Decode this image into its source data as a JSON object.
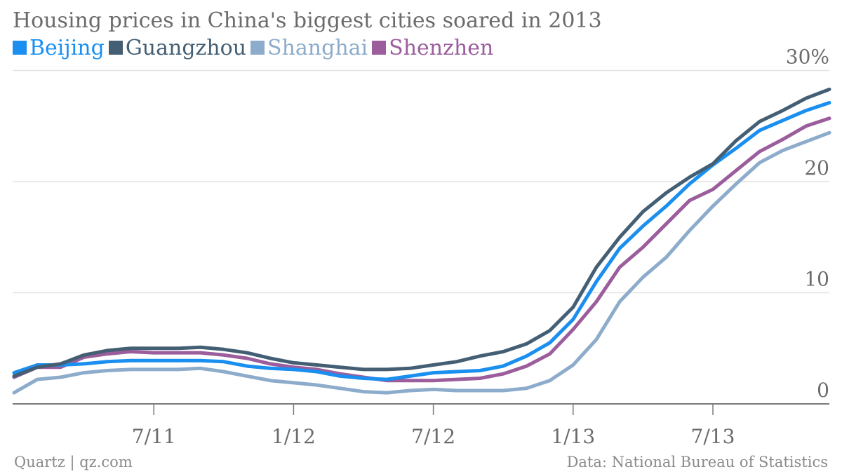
{
  "title": "Housing prices in China's biggest cities soared in 2013",
  "footer": {
    "credit": "Quartz | qz.com",
    "source": "Data: National Bureau of Statistics"
  },
  "chart_data": {
    "type": "line",
    "title": "Housing prices in China's biggest cities soared in 2013",
    "xlabel": "",
    "ylabel": "",
    "x": [
      "1/11",
      "2/11",
      "3/11",
      "4/11",
      "5/11",
      "6/11",
      "7/11",
      "8/11",
      "9/11",
      "10/11",
      "11/11",
      "12/11",
      "1/12",
      "2/12",
      "3/12",
      "4/12",
      "5/12",
      "6/12",
      "7/12",
      "8/12",
      "9/12",
      "10/12",
      "11/12",
      "12/12",
      "1/13",
      "2/13",
      "3/13",
      "4/13",
      "5/13",
      "6/13",
      "7/13",
      "8/13",
      "9/13",
      "10/13",
      "11/13",
      "12/13"
    ],
    "x_ticks": [
      "7/11",
      "1/12",
      "7/12",
      "1/13",
      "7/13"
    ],
    "y_ticks": [
      0,
      10,
      20,
      30
    ],
    "y_tick_labels": [
      "0",
      "10",
      "20",
      "30%"
    ],
    "ylim": [
      -1,
      30.5
    ],
    "grid": true,
    "legend_placement": "top-left",
    "series": [
      {
        "name": "Beijing",
        "color": "#1a8ff0",
        "values": [
          2.8,
          3.5,
          3.5,
          3.6,
          3.8,
          3.9,
          3.9,
          3.9,
          3.9,
          3.8,
          3.4,
          3.2,
          3.1,
          2.9,
          2.5,
          2.3,
          2.2,
          2.5,
          2.8,
          2.9,
          3.0,
          3.4,
          4.3,
          5.5,
          7.6,
          11.0,
          14.0,
          16.0,
          17.8,
          19.8,
          21.5,
          23.0,
          24.6,
          25.5,
          26.4,
          27.1
        ]
      },
      {
        "name": "Guangzhou",
        "color": "#445f74",
        "values": [
          2.5,
          3.3,
          3.6,
          4.4,
          4.8,
          5.0,
          5.0,
          5.0,
          5.1,
          4.9,
          4.6,
          4.1,
          3.7,
          3.5,
          3.3,
          3.1,
          3.1,
          3.2,
          3.5,
          3.8,
          4.3,
          4.7,
          5.4,
          6.6,
          8.7,
          12.3,
          15.0,
          17.3,
          19.0,
          20.4,
          21.6,
          23.7,
          25.4,
          26.4,
          27.5,
          28.3
        ]
      },
      {
        "name": "Shanghai",
        "color": "#8daccb",
        "values": [
          1.0,
          2.2,
          2.4,
          2.8,
          3.0,
          3.1,
          3.1,
          3.1,
          3.2,
          2.9,
          2.5,
          2.1,
          1.9,
          1.7,
          1.4,
          1.1,
          1.0,
          1.2,
          1.3,
          1.2,
          1.2,
          1.2,
          1.4,
          2.1,
          3.5,
          5.8,
          9.2,
          11.4,
          13.2,
          15.6,
          17.8,
          19.8,
          21.7,
          22.8,
          23.6,
          24.4
        ]
      },
      {
        "name": "Shenzhen",
        "color": "#9b5d9c",
        "values": [
          2.4,
          3.3,
          3.3,
          4.2,
          4.5,
          4.7,
          4.6,
          4.6,
          4.6,
          4.4,
          4.1,
          3.6,
          3.3,
          3.1,
          2.7,
          2.4,
          2.1,
          2.1,
          2.1,
          2.2,
          2.3,
          2.7,
          3.4,
          4.5,
          6.7,
          9.2,
          12.3,
          14.1,
          16.2,
          18.3,
          19.3,
          21.0,
          22.7,
          23.8,
          25.0,
          25.7
        ]
      }
    ]
  }
}
